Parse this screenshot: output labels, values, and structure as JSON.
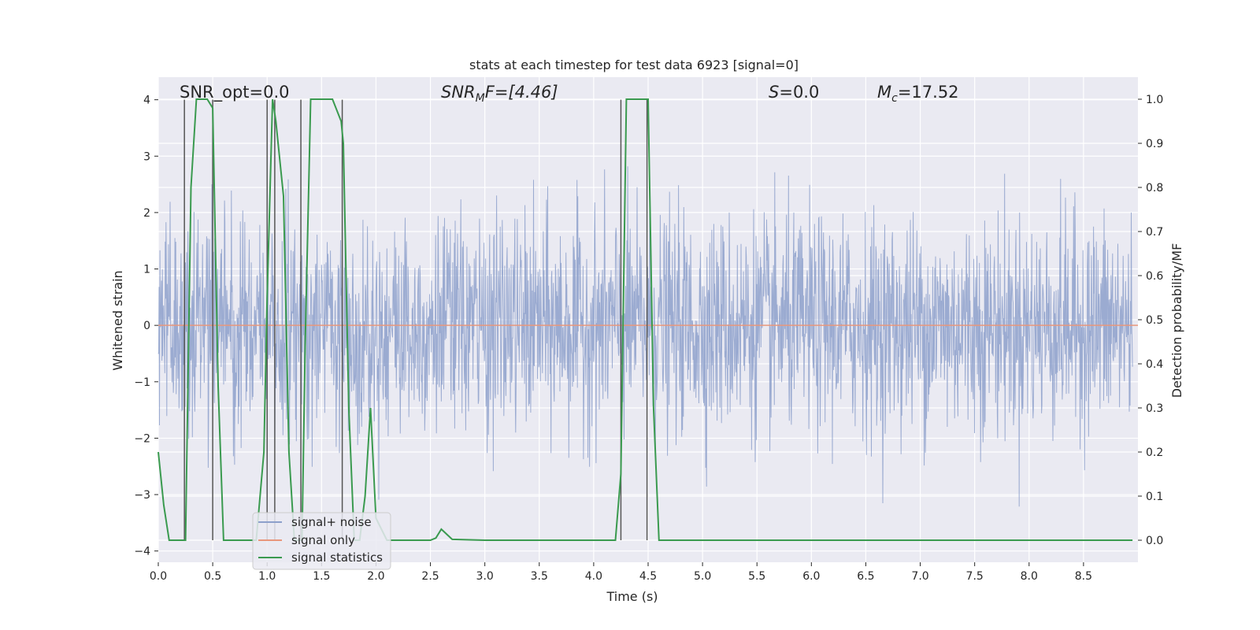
{
  "chart_data": {
    "type": "line",
    "title": "stats at each timestep for test data 6923 [signal=0]",
    "xlabel": "Time (s)",
    "ylabel_left": "Whitened strain",
    "ylabel_right": "Detection probability/MF",
    "xlim": [
      0.0,
      9.0
    ],
    "ylim_left": [
      -4.2,
      4.4
    ],
    "ylim_right": [
      -0.05,
      1.05
    ],
    "xticks": [
      "0.0",
      "0.5",
      "1.0",
      "1.5",
      "2.0",
      "2.5",
      "3.0",
      "3.5",
      "4.0",
      "4.5",
      "5.0",
      "5.5",
      "6.0",
      "6.5",
      "7.0",
      "7.5",
      "8.0",
      "8.5"
    ],
    "yticks_left": [
      "4",
      "3",
      "2",
      "1",
      "0",
      "−1",
      "−2",
      "−3",
      "−4"
    ],
    "yticks_right": [
      "1.0",
      "0.9",
      "0.8",
      "0.7",
      "0.6",
      "0.5",
      "0.4",
      "0.3",
      "0.2",
      "0.1",
      "0.0"
    ],
    "grid": true,
    "legend_position": "lower-left",
    "annotations": {
      "snr_opt": "SNR_opt=0.0",
      "snr_mf_prefix": "SNR",
      "snr_mf_sub": "M",
      "snr_mf_suffix": "F=[4.46]",
      "s_prefix": "S",
      "s_suffix": "=0.0",
      "mc_prefix": "M",
      "mc_sub": "c",
      "mc_suffix": "=17.52"
    },
    "series": [
      {
        "name": "signal+ noise",
        "color": "#8da0cb",
        "description_values": "whitened noise oscillating roughly between -3.7 and 3.7, mostly within -1.5 to 1.8"
      },
      {
        "name": "signal only",
        "color": "#e8977c",
        "x": [
          0.0,
          9.0
        ],
        "y": [
          0.0,
          0.0
        ]
      },
      {
        "name": "signal statistics",
        "color": "#3a9a4f",
        "x": [
          0.0,
          0.05,
          0.1,
          0.2,
          0.25,
          0.3,
          0.35,
          0.4,
          0.45,
          0.5,
          0.55,
          0.6,
          0.7,
          0.9,
          0.97,
          1.0,
          1.05,
          1.08,
          1.15,
          1.2,
          1.25,
          1.32,
          1.35,
          1.4,
          1.45,
          1.5,
          1.6,
          1.68,
          1.7,
          1.75,
          1.8,
          1.85,
          1.9,
          1.95,
          2.0,
          2.1,
          2.4,
          2.5,
          2.55,
          2.6,
          2.7,
          3.0,
          3.5,
          4.0,
          4.2,
          4.25,
          4.3,
          4.35,
          4.4,
          4.5,
          4.55,
          4.6,
          4.7,
          5.0,
          6.0,
          7.0,
          8.0,
          8.95
        ],
        "y": [
          0.2,
          0.08,
          0.0,
          0.0,
          0.0,
          0.8,
          1.0,
          1.0,
          1.0,
          0.98,
          0.35,
          0.0,
          0.0,
          0.0,
          0.2,
          0.55,
          1.0,
          0.95,
          0.78,
          0.2,
          0.0,
          0.0,
          0.45,
          1.0,
          1.0,
          1.0,
          1.0,
          0.95,
          0.9,
          0.3,
          0.0,
          0.0,
          0.1,
          0.3,
          0.05,
          0.0,
          0.0,
          0.0,
          0.005,
          0.025,
          0.002,
          0.0,
          0.0,
          0.0,
          0.0,
          0.15,
          1.0,
          1.0,
          1.0,
          1.0,
          0.3,
          0.0,
          0.0,
          0.0,
          0.0,
          0.0,
          0.0,
          0.0
        ]
      }
    ],
    "vertical_markers_x": [
      0.24,
      0.5,
      1.0,
      1.07,
      1.31,
      1.69,
      4.25,
      4.49
    ]
  },
  "colors": {
    "axes_bg": "#eaeaf2",
    "grid": "#ffffff",
    "marker_lines": "#555555"
  }
}
